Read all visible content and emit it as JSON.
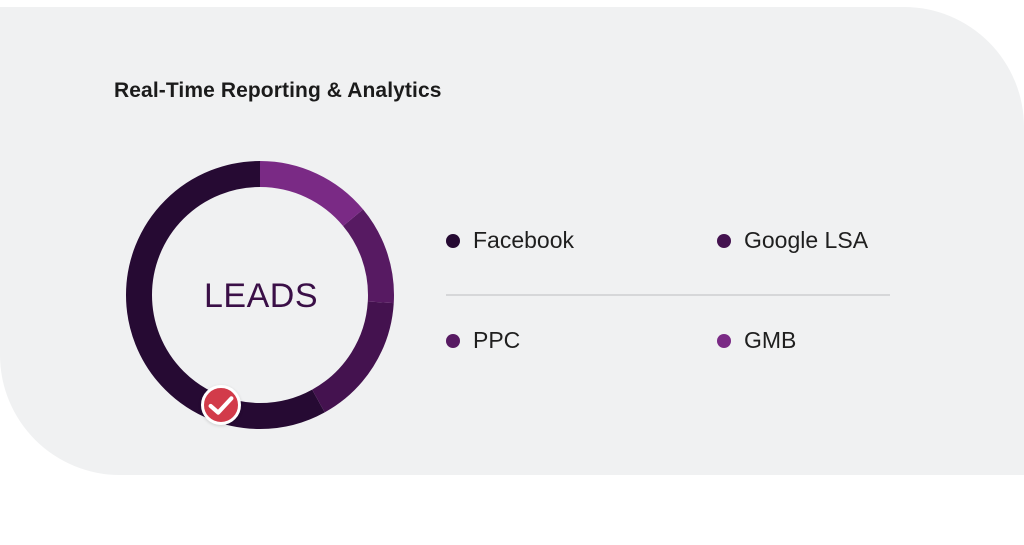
{
  "card": {
    "title": "Real-Time Reporting & Analytics"
  },
  "chart_data": {
    "type": "pie",
    "variant": "donut",
    "center_label": "LEADS",
    "categories": [
      "Facebook",
      "Google LSA",
      "PPC",
      "GMB"
    ],
    "values": [
      58,
      16,
      12,
      14
    ],
    "colors": [
      "#260a33",
      "#44124f",
      "#571a62",
      "#7a2a85"
    ],
    "legend_placement": "right",
    "badge_icon": "check-icon",
    "badge_color": "#d23b4a"
  }
}
